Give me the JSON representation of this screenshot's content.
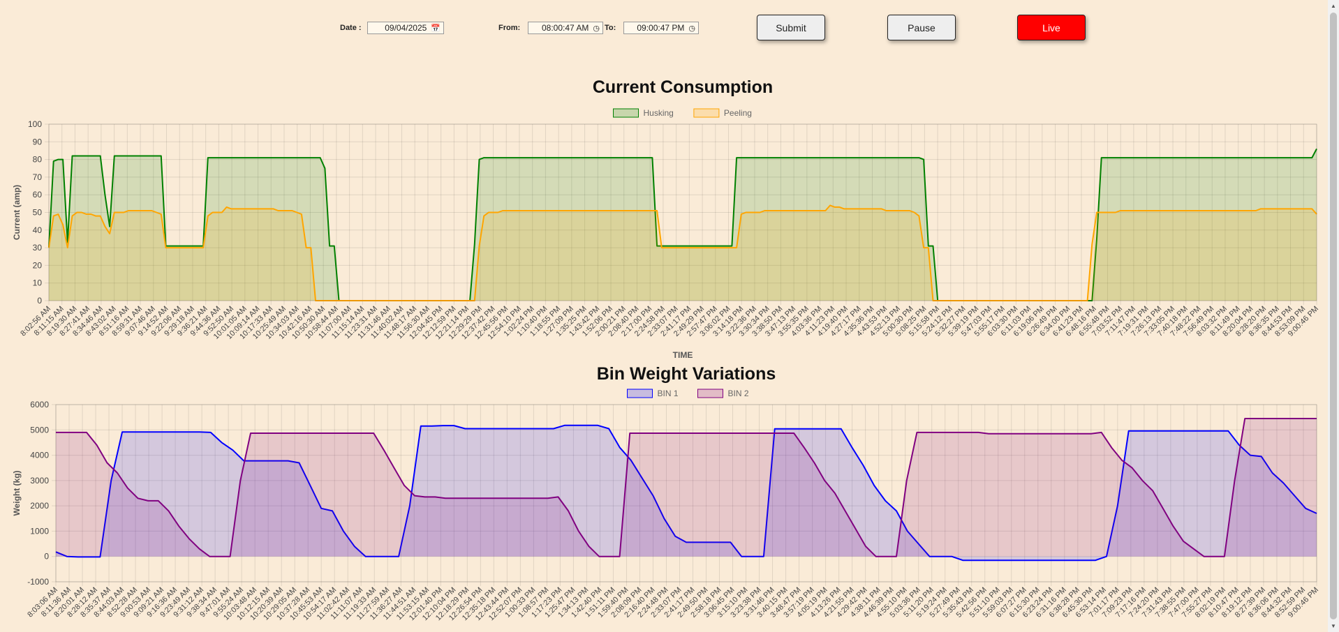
{
  "controls": {
    "date_label": "Date :",
    "date_value": "09/04/2025",
    "from_label": "From:",
    "from_value": "08:00:47 AM",
    "to_label": "To:",
    "to_value": "09:00:47 PM",
    "submit_label": "Submit",
    "pause_label": "Pause",
    "live_label": "Live"
  },
  "colors": {
    "background": "#faebd7",
    "husking": "#008000",
    "peeling": "#ffa500",
    "bin1": "#0000ff",
    "bin2": "#800080",
    "live": "#ff0000"
  },
  "chart_data": [
    {
      "type": "line",
      "filled": true,
      "title": "Current Consumption",
      "xlabel": "TIME",
      "ylabel": "Current (amp)",
      "ylim": [
        0,
        100
      ],
      "yticks": [
        0,
        10,
        20,
        30,
        40,
        50,
        60,
        70,
        80,
        90,
        100
      ],
      "grid": true,
      "legend_position": "top",
      "x_tick_labels": [
        "8:02:56 AM",
        "8:11:15 AM",
        "8:19:30 AM",
        "8:27:41 AM",
        "8:34:46 AM",
        "8:43:02 AM",
        "8:51:16 AM",
        "8:59:31 AM",
        "9:07:46 AM",
        "9:14:52 AM",
        "9:22:06 AM",
        "9:29:18 AM",
        "9:36:21 AM",
        "9:44:36 AM",
        "9:52:50 AM",
        "10:01:05 AM",
        "10:09:14 AM",
        "10:17:33 AM",
        "10:25:49 AM",
        "10:34:03 AM",
        "10:42:16 AM",
        "10:50:30 AM",
        "10:58:44 AM",
        "11:07:00 AM",
        "11:15:14 AM",
        "11:23:31 AM",
        "11:31:46 AM",
        "11:40:02 AM",
        "11:48:17 AM",
        "11:56:30 AM",
        "12:04:45 PM",
        "12:12:59 PM",
        "12:21:14 PM",
        "12:29:29 PM",
        "12:37:42 PM",
        "12:45:56 PM",
        "12:54:10 PM",
        "1:02:24 PM",
        "1:10:40 PM",
        "1:18:55 PM",
        "1:27:09 PM",
        "1:35:25 PM",
        "1:43:42 PM",
        "1:52:06 PM",
        "2:00:21 PM",
        "2:08:40 PM",
        "2:17:00 PM",
        "2:24:58 PM",
        "2:33:07 PM",
        "2:41:17 PM",
        "2:49:29 PM",
        "2:57:47 PM",
        "3:06:02 PM",
        "3:14:18 PM",
        "3:22:36 PM",
        "3:30:34 PM",
        "3:38:50 PM",
        "3:47:13 PM",
        "3:55:35 PM",
        "4:03:36 PM",
        "4:11:23 PM",
        "4:19:40 PM",
        "4:27:17 PM",
        "4:35:36 PM",
        "4:43:53 PM",
        "4:52:13 PM",
        "5:00:30 PM",
        "5:08:25 PM",
        "5:15:58 PM",
        "5:24:12 PM",
        "5:32:27 PM",
        "5:39:19 PM",
        "5:47:03 PM",
        "5:55:17 PM",
        "6:03:30 PM",
        "6:11:03 PM",
        "6:19:06 PM",
        "6:26:49 PM",
        "6:34:00 PM",
        "6:41:23 PM",
        "6:48:16 PM",
        "6:55:48 PM",
        "7:03:52 PM",
        "7:11:47 PM",
        "7:19:31 PM",
        "7:26:13 PM",
        "7:33:05 PM",
        "7:40:18 PM",
        "7:48:22 PM",
        "7:56:49 PM",
        "8:03:32 PM",
        "8:11:49 PM",
        "8:20:04 PM",
        "8:28:20 PM",
        "8:36:35 PM",
        "8:44:53 PM",
        "8:53:09 PM",
        "9:00:46 PM"
      ],
      "series": [
        {
          "name": "Husking",
          "color": "#008000",
          "values": [
            30,
            79,
            80,
            80,
            33,
            82,
            82,
            82,
            82,
            82,
            82,
            82,
            60,
            42,
            82,
            82,
            82,
            82,
            82,
            82,
            82,
            82,
            82,
            82,
            82,
            31,
            31,
            31,
            31,
            31,
            31,
            31,
            31,
            31,
            81,
            81,
            81,
            81,
            81,
            81,
            81,
            81,
            81,
            81,
            81,
            81,
            81,
            81,
            81,
            81,
            81,
            81,
            81,
            81,
            81,
            81,
            81,
            81,
            81,
            75,
            31,
            31,
            0,
            0,
            0,
            0,
            0,
            0,
            0,
            0,
            0,
            0,
            0,
            0,
            0,
            0,
            0,
            0,
            0,
            0,
            0,
            0,
            0,
            0,
            0,
            0,
            0,
            0,
            0,
            0,
            0,
            32,
            80,
            81,
            81,
            81,
            81,
            81,
            81,
            81,
            81,
            81,
            81,
            81,
            81,
            81,
            81,
            81,
            81,
            81,
            81,
            81,
            81,
            81,
            81,
            81,
            81,
            81,
            81,
            81,
            81,
            81,
            81,
            81,
            81,
            81,
            81,
            81,
            81,
            81,
            31,
            31,
            31,
            31,
            31,
            31,
            31,
            31,
            31,
            31,
            31,
            31,
            31,
            31,
            31,
            31,
            31,
            81,
            81,
            81,
            81,
            81,
            81,
            81,
            81,
            81,
            81,
            81,
            81,
            81,
            81,
            81,
            81,
            81,
            81,
            81,
            81,
            81,
            81,
            81,
            81,
            81,
            81,
            81,
            81,
            81,
            81,
            81,
            81,
            81,
            81,
            81,
            81,
            81,
            81,
            81,
            81,
            80,
            31,
            31,
            0,
            0,
            0,
            0,
            0,
            0,
            0,
            0,
            0,
            0,
            0,
            0,
            0,
            0,
            0,
            0,
            0,
            0,
            0,
            0,
            0,
            0,
            0,
            0,
            0,
            0,
            0,
            0,
            0,
            0,
            0,
            0,
            0,
            0,
            35,
            81,
            81,
            81,
            81,
            81,
            81,
            81,
            81,
            81,
            81,
            81,
            81,
            81,
            81,
            81,
            81,
            81,
            81,
            81,
            81,
            81,
            81,
            81,
            81,
            81,
            81,
            81,
            81,
            81,
            81,
            81,
            81,
            81,
            81,
            81,
            81,
            81,
            81,
            81,
            81,
            81,
            81,
            81,
            81,
            81,
            81,
            86
          ]
        },
        {
          "name": "Peeling",
          "color": "#ffa500",
          "values": [
            30,
            48,
            49,
            43,
            30,
            48,
            50,
            50,
            49,
            49,
            48,
            48,
            42,
            38,
            50,
            50,
            50,
            51,
            51,
            51,
            51,
            51,
            51,
            50,
            49,
            30,
            30,
            30,
            30,
            30,
            30,
            30,
            30,
            30,
            48,
            50,
            50,
            50,
            53,
            52,
            52,
            52,
            52,
            52,
            52,
            52,
            52,
            52,
            52,
            51,
            51,
            51,
            51,
            50,
            49,
            30,
            30,
            0,
            0,
            0,
            0,
            0,
            0,
            0,
            0,
            0,
            0,
            0,
            0,
            0,
            0,
            0,
            0,
            0,
            0,
            0,
            0,
            0,
            0,
            0,
            0,
            0,
            0,
            0,
            0,
            0,
            0,
            0,
            0,
            0,
            0,
            0,
            31,
            48,
            50,
            50,
            50,
            51,
            51,
            51,
            51,
            51,
            51,
            51,
            51,
            51,
            51,
            51,
            51,
            51,
            51,
            51,
            51,
            51,
            51,
            51,
            51,
            51,
            51,
            51,
            51,
            51,
            51,
            51,
            51,
            51,
            51,
            51,
            51,
            51,
            51,
            30,
            30,
            30,
            30,
            30,
            30,
            30,
            30,
            30,
            30,
            30,
            30,
            30,
            30,
            30,
            30,
            30,
            49,
            50,
            50,
            50,
            50,
            51,
            51,
            51,
            51,
            51,
            51,
            51,
            51,
            51,
            51,
            51,
            51,
            51,
            51,
            54,
            53,
            53,
            52,
            52,
            52,
            52,
            52,
            52,
            52,
            52,
            52,
            51,
            51,
            51,
            51,
            51,
            51,
            50,
            48,
            30,
            30,
            0,
            0,
            0,
            0,
            0,
            0,
            0,
            0,
            0,
            0,
            0,
            0,
            0,
            0,
            0,
            0,
            0,
            0,
            0,
            0,
            0,
            0,
            0,
            0,
            0,
            0,
            0,
            0,
            0,
            0,
            0,
            0,
            0,
            0,
            32,
            50,
            50,
            50,
            50,
            50,
            51,
            51,
            51,
            51,
            51,
            51,
            51,
            51,
            51,
            51,
            51,
            51,
            51,
            51,
            51,
            51,
            51,
            51,
            51,
            51,
            51,
            51,
            51,
            51,
            51,
            51,
            51,
            51,
            51,
            51,
            52,
            52,
            52,
            52,
            52,
            52,
            52,
            52,
            52,
            52,
            52,
            52,
            49
          ]
        }
      ]
    },
    {
      "type": "line",
      "filled": true,
      "title": "Bin Weight Variations",
      "xlabel": "",
      "ylabel": "Weight (kg)",
      "ylim": [
        -1000,
        6000
      ],
      "yticks": [
        -1000,
        0,
        1000,
        2000,
        3000,
        4000,
        5000,
        6000
      ],
      "grid": true,
      "legend_position": "top",
      "x_tick_labels": [
        "8:03:06 AM",
        "8:11:36 AM",
        "8:20:01 AM",
        "8:28:12 AM",
        "8:35:37 AM",
        "8:44:03 AM",
        "8:52:28 AM",
        "9:00:53 AM",
        "9:09:21 AM",
        "9:16:36 AM",
        "9:23:49 AM",
        "9:31:12 AM",
        "9:38:34 AM",
        "9:47:01 AM",
        "9:55:24 AM",
        "10:03:48 AM",
        "10:12:15 AM",
        "10:20:39 AM",
        "10:29:05 AM",
        "10:37:28 AM",
        "10:45:53 AM",
        "10:54:17 AM",
        "11:02:42 AM",
        "11:11:07 AM",
        "11:19:33 AM",
        "11:27:59 AM",
        "11:36:27 AM",
        "11:44:51 AM",
        "11:53:15 AM",
        "12:01:40 PM",
        "12:10:04 PM",
        "12:18:29 PM",
        "12:26:54 PM",
        "12:35:18 PM",
        "12:43:44 PM",
        "12:52:07 PM",
        "1:00:33 PM",
        "1:08:57 PM",
        "1:17:23 PM",
        "1:25:47 PM",
        "1:34:13 PM",
        "1:42:40 PM",
        "1:51:11 PM",
        "1:59:40 PM",
        "2:08:09 PM",
        "2:16:40 PM",
        "2:24:48 PM",
        "2:33:07 PM",
        "2:41:17 PM",
        "2:49:50 PM",
        "2:58:18 PM",
        "3:06:45 PM",
        "3:15:10 PM",
        "3:23:38 PM",
        "3:31:46 PM",
        "3:40:15 PM",
        "3:48:47 PM",
        "3:57:19 PM",
        "4:05:19 PM",
        "4:13:26 PM",
        "4:21:55 PM",
        "4:29:42 PM",
        "4:38:11 PM",
        "4:46:39 PM",
        "4:55:10 PM",
        "5:03:36 PM",
        "5:11:20 PM",
        "5:19:24 PM",
        "5:27:49 PM",
        "5:35:43 PM",
        "5:42:56 PM",
        "5:51:10 PM",
        "5:59:03 PM",
        "6:07:27 PM",
        "6:15:30 PM",
        "6:23:24 PM",
        "6:31:16 PM",
        "6:38:28 PM",
        "6:45:30 PM",
        "6:53:14 PM",
        "7:01:17 PM",
        "7:09:23 PM",
        "7:17:16 PM",
        "7:24:20 PM",
        "7:31:43 PM",
        "7:38:55 PM",
        "7:47:00 PM",
        "7:55:27 PM",
        "8:02:19 PM",
        "8:10:47 PM",
        "8:19:12 PM",
        "8:27:39 PM",
        "8:36:06 PM",
        "8:44:32 PM",
        "8:52:59 PM",
        "9:00:46 PM"
      ],
      "series": [
        {
          "name": "BIN 1",
          "color": "#0000ff",
          "values": [
            180,
            0,
            -20,
            -20,
            -20,
            3000,
            4920,
            4920,
            4920,
            4920,
            4920,
            4920,
            4920,
            4920,
            4900,
            4500,
            4200,
            3780,
            3780,
            3780,
            3780,
            3780,
            3700,
            2800,
            1900,
            1800,
            1000,
            400,
            0,
            0,
            0,
            0,
            2000,
            5150,
            5150,
            5170,
            5170,
            5050,
            5050,
            5050,
            5050,
            5050,
            5050,
            5050,
            5050,
            5050,
            5180,
            5180,
            5180,
            5180,
            5050,
            4300,
            3800,
            3100,
            2400,
            1500,
            800,
            560,
            560,
            560,
            560,
            560,
            0,
            0,
            0,
            5040,
            5040,
            5040,
            5040,
            5040,
            5040,
            5040,
            4300,
            3600,
            2800,
            2200,
            1800,
            1000,
            500,
            0,
            0,
            0,
            -150,
            -150,
            -150,
            -150,
            -150,
            -150,
            -150,
            -150,
            -150,
            -150,
            -150,
            -150,
            -150,
            0,
            2000,
            4960,
            4960,
            4960,
            4960,
            4960,
            4960,
            4960,
            4960,
            4960,
            4960,
            4400,
            4000,
            3950,
            3300,
            2900,
            2400,
            1900,
            1700
          ]
        },
        {
          "name": "BIN 2",
          "color": "#800080",
          "values": [
            4900,
            4900,
            4900,
            4900,
            4400,
            3700,
            3300,
            2700,
            2300,
            2200,
            2200,
            1800,
            1200,
            700,
            300,
            0,
            0,
            0,
            3000,
            4870,
            4870,
            4870,
            4870,
            4870,
            4870,
            4870,
            4870,
            4870,
            4870,
            4870,
            4870,
            4870,
            4200,
            3500,
            2800,
            2400,
            2350,
            2350,
            2300,
            2300,
            2300,
            2300,
            2300,
            2300,
            2300,
            2300,
            2300,
            2300,
            2300,
            2350,
            1800,
            1000,
            400,
            0,
            0,
            0,
            4870,
            4870,
            4870,
            4870,
            4870,
            4870,
            4870,
            4870,
            4870,
            4870,
            4870,
            4870,
            4870,
            4870,
            4870,
            4870,
            4870,
            4300,
            3700,
            3000,
            2500,
            1800,
            1100,
            400,
            0,
            0,
            0,
            3000,
            4900,
            4900,
            4900,
            4900,
            4900,
            4900,
            4900,
            4850,
            4850,
            4850,
            4850,
            4850,
            4850,
            4850,
            4850,
            4850,
            4850,
            4850,
            4900,
            4300,
            3800,
            3500,
            3000,
            2600,
            1900,
            1200,
            600,
            300,
            0,
            0,
            0,
            3000,
            5450,
            5450,
            5450,
            5450,
            5450,
            5450,
            5450,
            5450
          ]
        }
      ]
    }
  ]
}
